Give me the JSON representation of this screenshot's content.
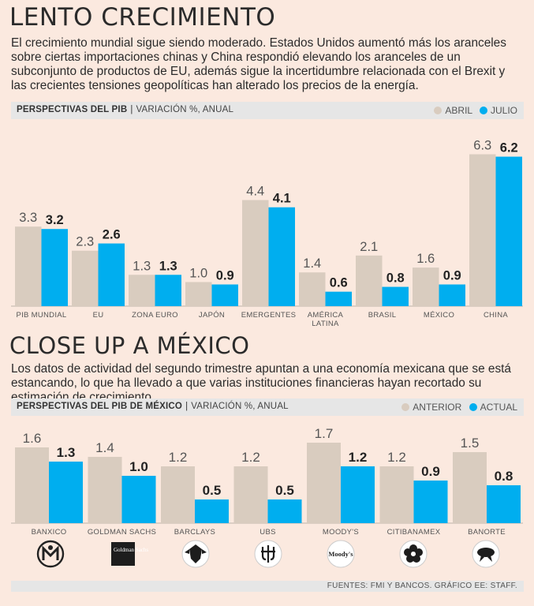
{
  "section1": {
    "title": "LENTO CRECIMIENTO",
    "intro": "El crecimiento mundial sigue siendo moderado. Estados Unidos aumentó más los aranceles sobre ciertas importaciones chinas y China respondió elevando los aranceles de un subconjunto de productos de EU, además sigue la incertidumbre relacionada con el Brexit y las crecientes tensiones geopolíticas han alterado los precios de la energía.",
    "header_bold": "PERSPECTIVAS DEL PIB",
    "header_rest": "VARIACIÓN %, ANUAL",
    "legend": [
      "ABRIL",
      "JULIO"
    ]
  },
  "section2": {
    "title": "CLOSE UP A MÉXICO",
    "intro": "Los datos de actividad del segundo trimestre apuntan a una economía mexicana que se está estancando, lo que ha llevado a que varias instituciones financieras hayan recortado su estimación de crecimiento.",
    "header_bold": "PERSPECTIVAS DEL PIB DE MÉXICO",
    "header_rest": "VARIACIÓN %, ANUAL",
    "legend": [
      "ANTERIOR",
      "ACTUAL"
    ]
  },
  "source": "FUENTES: FMI Y BANCOS. GRÁFICO EE: STAFF.",
  "colors": {
    "gray": "#d9ccbf",
    "blue": "#00aeef",
    "bg": "#fbe9df"
  },
  "chart_data": [
    {
      "type": "bar",
      "title": "PERSPECTIVAS DEL PIB",
      "ylabel": "VARIACIÓN %, ANUAL",
      "ylim": [
        0,
        7.2
      ],
      "categories": [
        [
          "PIB MUNDIAL"
        ],
        [
          "EU"
        ],
        [
          "ZONA EURO"
        ],
        [
          "JAPÓN"
        ],
        [
          "EMERGENTES"
        ],
        [
          "AMÉRICA",
          "LATINA"
        ],
        [
          "BRASIL"
        ],
        [
          "MÉXICO"
        ],
        [
          "CHINA"
        ]
      ],
      "series": [
        {
          "name": "ABRIL",
          "values": [
            3.3,
            2.3,
            1.3,
            1.0,
            4.4,
            1.4,
            2.1,
            1.6,
            6.3
          ],
          "labels": [
            "3.3",
            "2.3",
            "1.3",
            "1.0",
            "4.4",
            "1.4",
            "2.1",
            "1.6",
            "6.3"
          ]
        },
        {
          "name": "JULIO",
          "values": [
            3.2,
            2.6,
            1.3,
            0.9,
            4.1,
            0.6,
            0.8,
            0.9,
            6.2
          ],
          "labels": [
            "3.2",
            "2.6",
            "1.3",
            "0.9",
            "4.1",
            "0.6",
            "0.8",
            "0.9",
            "6.2"
          ]
        }
      ]
    },
    {
      "type": "bar",
      "title": "PERSPECTIVAS DEL PIB DE MÉXICO",
      "ylabel": "VARIACIÓN %, ANUAL",
      "ylim": [
        0,
        2.1
      ],
      "categories": [
        [
          "BANXICO"
        ],
        [
          "GOLDMAN SACHS"
        ],
        [
          "BARCLAYS"
        ],
        [
          "UBS"
        ],
        [
          "MOODY'S"
        ],
        [
          "CITIBANAMEX"
        ],
        [
          "BANORTE"
        ]
      ],
      "series": [
        {
          "name": "ANTERIOR",
          "values": [
            1.6,
            1.4,
            1.2,
            1.2,
            1.7,
            1.2,
            1.5
          ],
          "labels": [
            "1.6",
            "1.4",
            "1.2",
            "1.2",
            "1.7",
            "1.2",
            "1.5"
          ]
        },
        {
          "name": "ACTUAL",
          "values": [
            1.3,
            1.0,
            0.5,
            0.5,
            1.2,
            0.9,
            0.8
          ],
          "labels": [
            "1.3",
            "1.0",
            "0.5",
            "0.5",
            "1.2",
            "0.9",
            "0.8"
          ]
        }
      ]
    }
  ],
  "logos": [
    {
      "name": "banxico-logo-icon",
      "text": ""
    },
    {
      "name": "goldman-sachs-logo-icon",
      "text": "Goldman Sachs"
    },
    {
      "name": "barclays-logo-icon",
      "text": ""
    },
    {
      "name": "ubs-logo-icon",
      "text": ""
    },
    {
      "name": "moodys-logo-icon",
      "text": "Moody's"
    },
    {
      "name": "citibanamex-logo-icon",
      "text": ""
    },
    {
      "name": "banorte-logo-icon",
      "text": ""
    }
  ]
}
